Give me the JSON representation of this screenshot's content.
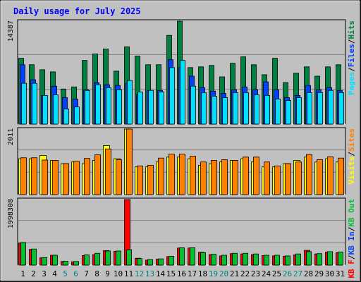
{
  "title": "Daily usage for July 2025",
  "colors": {
    "hits": "#008040",
    "files": "#0040ff",
    "pages": "#00e0ff",
    "visits": "#ffff00",
    "sites": "#ff8000",
    "kb_in": "#00c030",
    "kb_out": "#ff0000",
    "panel_bg": "#c0c0c0",
    "border": "#808080",
    "title_text": "#0000ff",
    "day_label_normal": "#000000",
    "day_label_weekend": "#008080"
  },
  "chart_data": [
    {
      "type": "bar",
      "name": "hits-files-pages",
      "ymax_label": "14387",
      "ylim": [
        0,
        14387
      ],
      "legend": [
        {
          "label": "Pages",
          "color": "#00e0ff"
        },
        {
          "label": "/",
          "color": "#000000"
        },
        {
          "label": "Files",
          "color": "#0040ff"
        },
        {
          "label": "/",
          "color": "#000000"
        },
        {
          "label": "Hits",
          "color": "#008040"
        }
      ],
      "series": [
        {
          "name": "Hits",
          "values": [
            9200,
            8300,
            7600,
            7300,
            4900,
            5200,
            8900,
            9800,
            10500,
            7400,
            10800,
            9500,
            8300,
            8300,
            12400,
            14387,
            7900,
            8000,
            8200,
            6600,
            8500,
            9400,
            8300,
            6900,
            9200,
            5800,
            7100,
            8000,
            6700,
            8000,
            8300
          ]
        },
        {
          "name": "Files",
          "values": [
            8300,
            6200,
            4000,
            5300,
            3700,
            3500,
            4800,
            5800,
            5500,
            5400,
            5700,
            4100,
            4700,
            4700,
            9000,
            7900,
            6700,
            5100,
            4600,
            4300,
            4800,
            5200,
            4800,
            5900,
            4800,
            3700,
            4000,
            5400,
            4800,
            5100,
            4700
          ]
        },
        {
          "name": "Pages",
          "values": [
            5700,
            5700,
            4000,
            4100,
            2100,
            2400,
            4700,
            5500,
            5100,
            4800,
            6100,
            4500,
            4700,
            4500,
            7900,
            8900,
            5300,
            4400,
            3900,
            3700,
            4400,
            4400,
            4100,
            4000,
            3500,
            3300,
            3700,
            4400,
            4400,
            4700,
            4400
          ]
        }
      ]
    },
    {
      "type": "bar",
      "name": "visits-sites",
      "ymax_label": "2011",
      "ylim": [
        0,
        2011
      ],
      "legend": [
        {
          "label": "Visits",
          "color": "#ffff00"
        },
        {
          "label": "/",
          "color": "#000000"
        },
        {
          "label": "Sites",
          "color": "#ff8000"
        }
      ],
      "series": [
        {
          "name": "Visits",
          "values": [
            1100,
            1100,
            1200,
            1050,
            950,
            1000,
            950,
            1050,
            1500,
            1100,
            2011,
            850,
            850,
            1000,
            1150,
            1150,
            1100,
            900,
            950,
            1000,
            1050,
            1100,
            1000,
            850,
            850,
            950,
            1050,
            1150,
            1000,
            1100,
            1000
          ]
        },
        {
          "name": "Sites",
          "values": [
            1130,
            1130,
            1060,
            1050,
            950,
            1020,
            1110,
            1220,
            1400,
            1070,
            2011,
            880,
            900,
            1120,
            1240,
            1240,
            1180,
            1000,
            1050,
            1070,
            1050,
            1150,
            1150,
            1000,
            880,
            950,
            1000,
            1230,
            1070,
            1160,
            1120
          ]
        }
      ]
    },
    {
      "type": "bar",
      "name": "kb-in-out",
      "ymax_label": "1998308",
      "ylim": [
        0,
        1998308
      ],
      "legend": [
        {
          "label": "KB F",
          "color": "#ff0000"
        },
        {
          "label": "/",
          "color": "#000000"
        },
        {
          "label": "KB In",
          "color": "#0040ff"
        },
        {
          "label": "/",
          "color": "#000000"
        },
        {
          "label": "KB Out",
          "color": "#00c030"
        }
      ],
      "series": [
        {
          "name": "KB F",
          "values": [
            670000,
            480000,
            220000,
            300000,
            110000,
            100000,
            290000,
            320000,
            440000,
            420000,
            1998308,
            210000,
            150000,
            180000,
            260000,
            520000,
            520000,
            390000,
            320000,
            280000,
            350000,
            340000,
            320000,
            290000,
            280000,
            270000,
            310000,
            450000,
            340000,
            400000,
            380000
          ]
        },
        {
          "name": "KB Out",
          "values": [
            690000,
            490000,
            230000,
            300000,
            120000,
            110000,
            310000,
            360000,
            430000,
            430000,
            470000,
            200000,
            170000,
            190000,
            270000,
            530000,
            530000,
            380000,
            330000,
            300000,
            360000,
            360000,
            340000,
            300000,
            300000,
            280000,
            340000,
            410000,
            350000,
            410000,
            400000
          ]
        }
      ]
    }
  ],
  "days": [
    {
      "label": "1",
      "weekend": false
    },
    {
      "label": "2",
      "weekend": false
    },
    {
      "label": "3",
      "weekend": false
    },
    {
      "label": "4",
      "weekend": false
    },
    {
      "label": "5",
      "weekend": true
    },
    {
      "label": "6",
      "weekend": true
    },
    {
      "label": "7",
      "weekend": false
    },
    {
      "label": "8",
      "weekend": false
    },
    {
      "label": "9",
      "weekend": false
    },
    {
      "label": "10",
      "weekend": false
    },
    {
      "label": "11",
      "weekend": false
    },
    {
      "label": "12",
      "weekend": true
    },
    {
      "label": "13",
      "weekend": true
    },
    {
      "label": "14",
      "weekend": false
    },
    {
      "label": "15",
      "weekend": false
    },
    {
      "label": "16",
      "weekend": false
    },
    {
      "label": "17",
      "weekend": false
    },
    {
      "label": "18",
      "weekend": false
    },
    {
      "label": "19",
      "weekend": true
    },
    {
      "label": "20",
      "weekend": true
    },
    {
      "label": "21",
      "weekend": false
    },
    {
      "label": "22",
      "weekend": false
    },
    {
      "label": "23",
      "weekend": false
    },
    {
      "label": "24",
      "weekend": false
    },
    {
      "label": "25",
      "weekend": false
    },
    {
      "label": "26",
      "weekend": true
    },
    {
      "label": "27",
      "weekend": true
    },
    {
      "label": "28",
      "weekend": false
    },
    {
      "label": "29",
      "weekend": false
    },
    {
      "label": "30",
      "weekend": false
    },
    {
      "label": "31",
      "weekend": false
    }
  ]
}
